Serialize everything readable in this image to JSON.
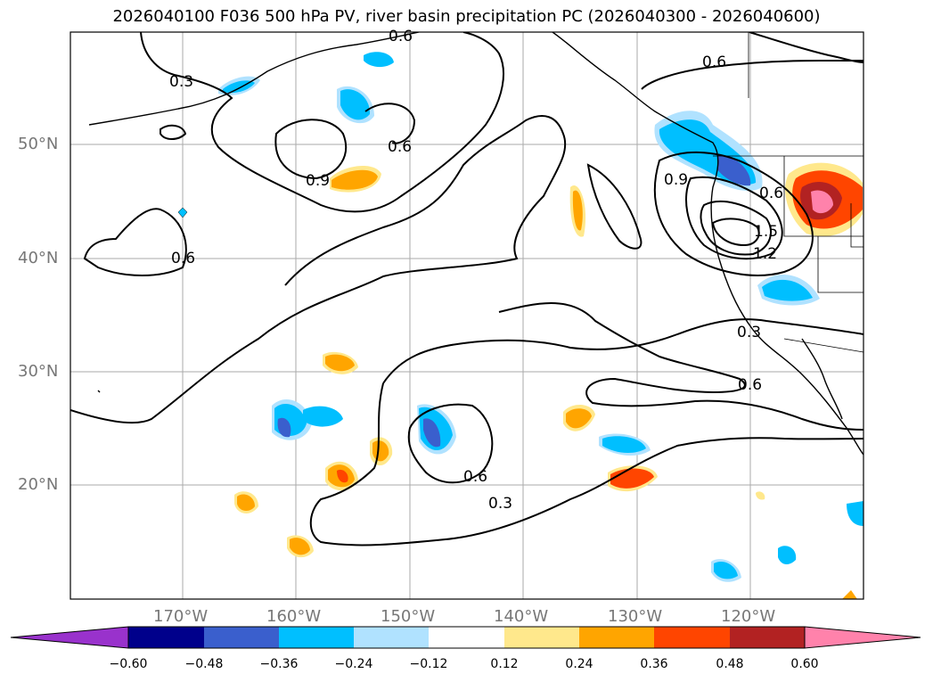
{
  "title": "2026040100 F036 500 hPa PV, river basin precipitation PC (2026040300 - 2026040600)",
  "map": {
    "lon_labels": [
      "170°W",
      "160°W",
      "150°W",
      "140°W",
      "130°W",
      "120°W"
    ],
    "lat_labels": [
      "50°N",
      "40°N",
      "30°N",
      "20°N"
    ],
    "contour_labels": [
      "0.3",
      "0.6",
      "0.9",
      "0.6",
      "0.6",
      "0.6",
      "0.9",
      "0.6",
      "1.2",
      "1.5",
      "0.3",
      "0.6",
      "0.6",
      "0.3"
    ]
  },
  "colorbar": {
    "ticks": [
      "−0.60",
      "−0.48",
      "−0.36",
      "−0.24",
      "−0.12",
      "0.12",
      "0.24",
      "0.36",
      "0.48",
      "0.60"
    ],
    "colors": [
      "#9932cc",
      "#00008b",
      "#3a5fcd",
      "#00bfff",
      "#b0e2ff",
      "#ffffff",
      "#ffe88c",
      "#ffa500",
      "#ff4500",
      "#b22222",
      "#ff82ab"
    ]
  }
}
